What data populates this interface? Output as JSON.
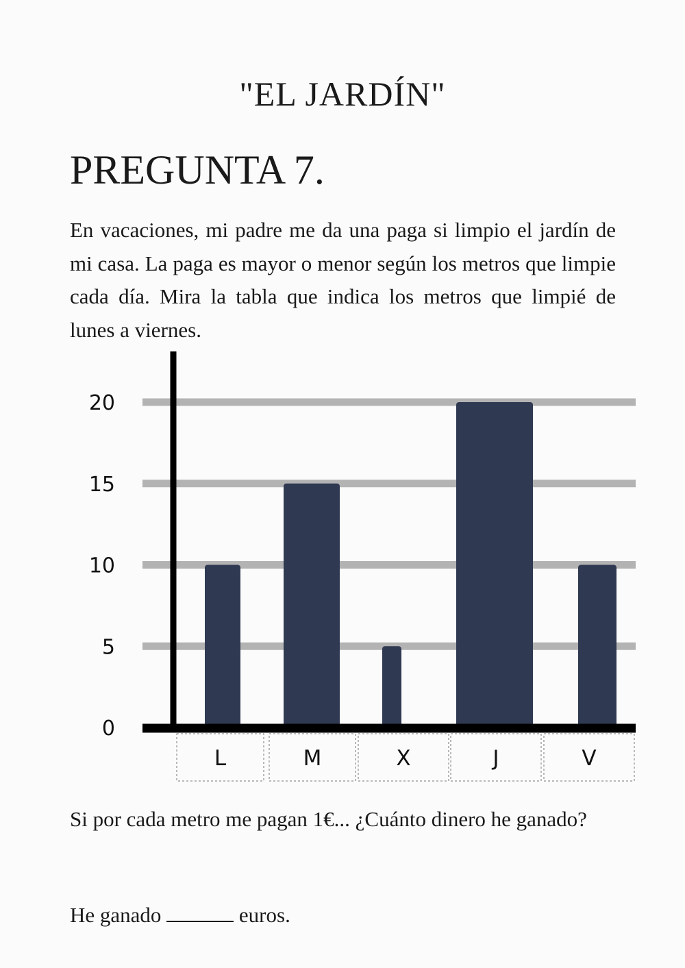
{
  "page": {
    "title": "\"EL JARDÍN\"",
    "question_heading": "PREGUNTA 7.",
    "paragraph": "En vacaciones, mi padre me da una paga si limpio el jardín de mi casa. La paga es mayor o menor según los metros que limpie cada día. Mira la tabla que indica los metros que limpié de lunes a viernes.",
    "prompt": "Si por cada metro me pagan 1€... ¿Cuánto dinero he ganado?",
    "answer_prefix": "He ganado",
    "answer_suffix": "euros."
  },
  "chart_data": {
    "type": "bar",
    "categories": [
      "L",
      "M",
      "X",
      "J",
      "V"
    ],
    "values": [
      10,
      15,
      5,
      20,
      10
    ],
    "yticks": [
      0,
      5,
      10,
      15,
      20
    ],
    "ylim": [
      0,
      20
    ],
    "grid": true,
    "bar_color": "#2f3951",
    "grid_color": "#b3b3b3",
    "axis_color": "#000000"
  }
}
